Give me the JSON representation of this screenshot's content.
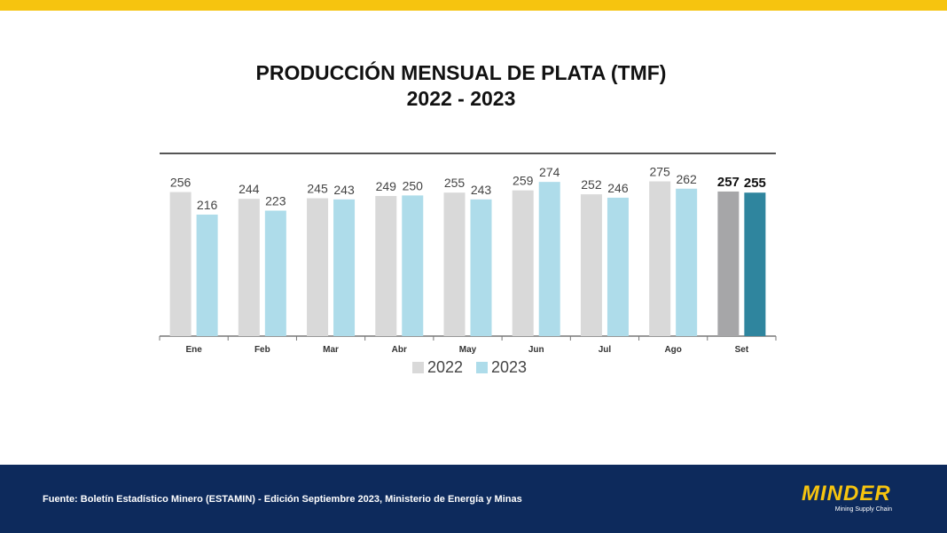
{
  "header": {
    "title_line1": "PRODUCCIÓN MENSUAL DE PLATA (TMF)",
    "title_line2": "2022 - 2023"
  },
  "footer": {
    "source": "Fuente: Boletín Estadístico Minero (ESTAMIN) - Edición Septiembre 2023, Ministerio de Energía y Minas",
    "logo_text": "MINDER",
    "logo_tagline": "Mining Supply Chain"
  },
  "colors": {
    "accent_top": "#f6c40f",
    "footer_bg": "#0d2a5c",
    "bar_2022": "#d9d9d9",
    "bar_2023": "#aedcea",
    "bar_2022_highlight": "#a6a6a8",
    "bar_2023_highlight": "#2f859e"
  },
  "chart_data": {
    "type": "bar",
    "title": "",
    "xlabel": "",
    "ylabel": "",
    "categories": [
      "Ene",
      "Feb",
      "Mar",
      "Abr",
      "May",
      "Jun",
      "Jul",
      "Ago",
      "Set"
    ],
    "series": [
      {
        "name": "2022",
        "values": [
          256,
          244,
          245,
          249,
          255,
          259,
          252,
          275,
          257
        ]
      },
      {
        "name": "2023",
        "values": [
          216,
          223,
          243,
          250,
          243,
          274,
          246,
          262,
          255
        ]
      }
    ],
    "ylim": [
      0,
      290
    ],
    "grid": false,
    "legend_position": "bottom",
    "highlighted_category": "Set"
  }
}
